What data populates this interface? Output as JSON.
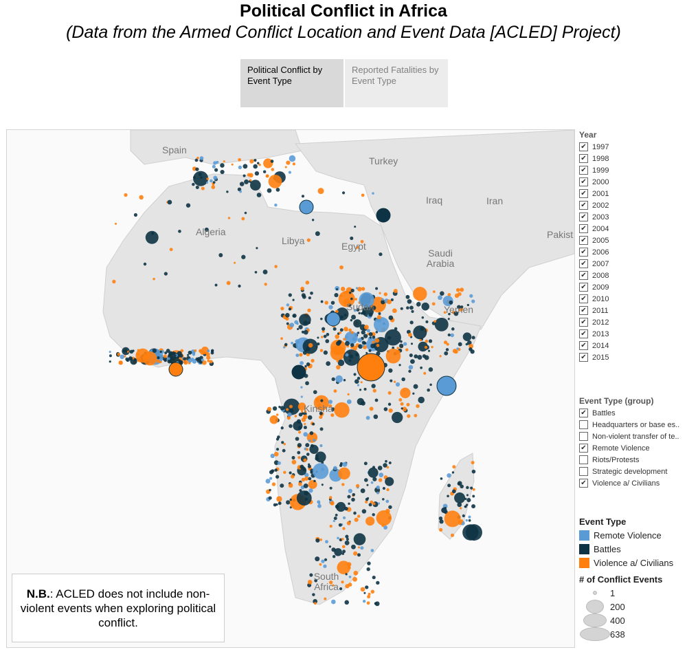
{
  "header": {
    "title": "Political Conflict in Africa",
    "subtitle": "(Data from the Armed Conflict Location and Event Data [ACLED] Project)"
  },
  "tabs": [
    {
      "label": "Political Conflict by Event Type",
      "active": true
    },
    {
      "label": "Reported Fatalities by Event Type",
      "active": false
    }
  ],
  "map": {
    "labels": [
      "Spain",
      "Turkey",
      "Iraq",
      "Iran",
      "Algeria",
      "Libya",
      "Egypt",
      "Saudi Arabia",
      "Pakist",
      "Sudan",
      "Yemen",
      "Kinsha",
      "South Africa"
    ]
  },
  "note": {
    "bold": "N.B.",
    "text": ": ACLED does not include non-violent events when exploring political conflict."
  },
  "year_filter": {
    "title": "Year",
    "items": [
      {
        "label": "1997",
        "checked": true
      },
      {
        "label": "1998",
        "checked": true
      },
      {
        "label": "1999",
        "checked": true
      },
      {
        "label": "2000",
        "checked": true
      },
      {
        "label": "2001",
        "checked": true
      },
      {
        "label": "2002",
        "checked": true
      },
      {
        "label": "2003",
        "checked": true
      },
      {
        "label": "2004",
        "checked": true
      },
      {
        "label": "2005",
        "checked": true
      },
      {
        "label": "2006",
        "checked": true
      },
      {
        "label": "2007",
        "checked": true
      },
      {
        "label": "2008",
        "checked": true
      },
      {
        "label": "2009",
        "checked": true
      },
      {
        "label": "2010",
        "checked": true
      },
      {
        "label": "2011",
        "checked": true
      },
      {
        "label": "2012",
        "checked": true
      },
      {
        "label": "2013",
        "checked": true
      },
      {
        "label": "2014",
        "checked": true
      },
      {
        "label": "2015",
        "checked": true
      }
    ]
  },
  "event_group_filter": {
    "title": "Event Type (group)",
    "items": [
      {
        "label": "Battles",
        "checked": true
      },
      {
        "label": "Headquarters or base es..",
        "checked": false
      },
      {
        "label": "Non-violent transfer of te..",
        "checked": false
      },
      {
        "label": "Remote Violence",
        "checked": true
      },
      {
        "label": "Riots/Protests",
        "checked": false
      },
      {
        "label": "Strategic development",
        "checked": false
      },
      {
        "label": "Violence a/ Civilians",
        "checked": true
      }
    ]
  },
  "color_legend": {
    "title": "Event Type",
    "items": [
      {
        "label": "Remote Violence",
        "color": "#5b9bd5"
      },
      {
        "label": "Battles",
        "color": "#0e3344"
      },
      {
        "label": "Violence a/ Civilians",
        "color": "#ff7f0e"
      }
    ]
  },
  "size_legend": {
    "title": "# of Conflict Events",
    "items": [
      "1",
      "200",
      "400",
      "638"
    ]
  }
}
